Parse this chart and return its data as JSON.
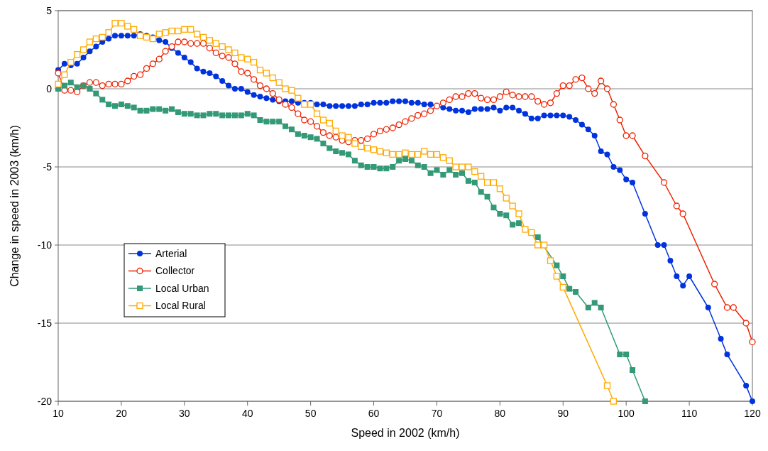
{
  "chart_data": {
    "type": "line",
    "xlabel": "Speed in 2002 (km/h)",
    "ylabel": "Change in speed in 2003 (km/h)",
    "xlim": [
      10,
      120
    ],
    "xticks": [
      10,
      20,
      30,
      40,
      50,
      60,
      70,
      80,
      90,
      100,
      110,
      120
    ],
    "ylim": [
      -20,
      5
    ],
    "yticks": [
      -20,
      -15,
      -10,
      -5,
      0,
      5
    ],
    "grid": "y",
    "legend": "bottom left",
    "line_style": "solid",
    "series": [
      {
        "name": "Arterial",
        "color": "#0033dd",
        "marker": "circle",
        "x": [
          10,
          11,
          12,
          13,
          14,
          15,
          16,
          17,
          18,
          19,
          20,
          21,
          22,
          23,
          24,
          25,
          26,
          27,
          28,
          29,
          30,
          31,
          32,
          33,
          34,
          35,
          36,
          37,
          38,
          39,
          40,
          41,
          42,
          43,
          44,
          45,
          46,
          47,
          48,
          49,
          50,
          51,
          52,
          53,
          54,
          55,
          56,
          57,
          58,
          59,
          60,
          61,
          62,
          63,
          64,
          65,
          66,
          67,
          68,
          69,
          70,
          71,
          72,
          73,
          74,
          75,
          76,
          77,
          78,
          79,
          80,
          81,
          82,
          83,
          84,
          85,
          86,
          87,
          88,
          89,
          90,
          91,
          92,
          93,
          94,
          95,
          96,
          97,
          98,
          99,
          100,
          101,
          103,
          105,
          106,
          107,
          108,
          109,
          110,
          113,
          115,
          116,
          119,
          120
        ],
        "values": [
          1.2,
          1.6,
          1.5,
          1.6,
          2.0,
          2.4,
          2.7,
          3.0,
          3.2,
          3.4,
          3.4,
          3.4,
          3.4,
          3.5,
          3.4,
          3.3,
          3.1,
          3.0,
          2.6,
          2.3,
          2.0,
          1.7,
          1.3,
          1.1,
          1.0,
          0.8,
          0.5,
          0.2,
          0.0,
          0.0,
          -0.2,
          -0.4,
          -0.5,
          -0.6,
          -0.7,
          -0.8,
          -0.8,
          -0.8,
          -0.9,
          -0.9,
          -0.9,
          -1.0,
          -1.0,
          -1.1,
          -1.1,
          -1.1,
          -1.1,
          -1.1,
          -1.0,
          -1.0,
          -0.9,
          -0.9,
          -0.9,
          -0.8,
          -0.8,
          -0.8,
          -0.9,
          -0.9,
          -1.0,
          -1.0,
          -1.1,
          -1.2,
          -1.3,
          -1.4,
          -1.4,
          -1.5,
          -1.3,
          -1.3,
          -1.3,
          -1.2,
          -1.4,
          -1.2,
          -1.2,
          -1.4,
          -1.6,
          -1.9,
          -1.9,
          -1.7,
          -1.7,
          -1.7,
          -1.7,
          -1.8,
          -2.0,
          -2.3,
          -2.6,
          -3.0,
          -4.0,
          -4.2,
          -5.0,
          -5.2,
          -5.8,
          -6.0,
          -8.0,
          -10.0,
          -10.0,
          -11.0,
          -12.0,
          -12.6,
          -12.0,
          -14.0,
          -16.0,
          -17.0,
          -19.0,
          -20.0
        ]
      },
      {
        "name": "Collector",
        "color": "#ee2200",
        "marker": "circle",
        "x": [
          10,
          11,
          12,
          13,
          14,
          15,
          16,
          17,
          18,
          19,
          20,
          21,
          22,
          23,
          24,
          25,
          26,
          27,
          28,
          29,
          30,
          31,
          32,
          33,
          34,
          35,
          36,
          37,
          38,
          39,
          40,
          41,
          42,
          43,
          44,
          45,
          46,
          47,
          48,
          49,
          50,
          51,
          52,
          53,
          54,
          55,
          56,
          57,
          58,
          59,
          60,
          61,
          62,
          63,
          64,
          65,
          66,
          67,
          68,
          69,
          70,
          71,
          72,
          73,
          74,
          75,
          76,
          77,
          78,
          79,
          80,
          81,
          82,
          83,
          84,
          85,
          86,
          87,
          88,
          89,
          90,
          91,
          92,
          93,
          94,
          95,
          96,
          97,
          98,
          99,
          100,
          101,
          103,
          106,
          108,
          109,
          114,
          116,
          117,
          119,
          120
        ],
        "values": [
          1.0,
          -0.1,
          -0.1,
          -0.2,
          0.2,
          0.4,
          0.4,
          0.2,
          0.3,
          0.3,
          0.3,
          0.5,
          0.8,
          0.9,
          1.3,
          1.6,
          1.9,
          2.4,
          2.7,
          3.0,
          3.0,
          2.9,
          2.9,
          2.9,
          2.6,
          2.3,
          2.1,
          2.0,
          1.6,
          1.1,
          1.0,
          0.6,
          0.2,
          0.0,
          -0.3,
          -0.7,
          -1.0,
          -1.2,
          -1.6,
          -2.0,
          -2.1,
          -2.4,
          -2.8,
          -3.0,
          -3.1,
          -3.3,
          -3.4,
          -3.3,
          -3.3,
          -3.2,
          -2.9,
          -2.7,
          -2.6,
          -2.5,
          -2.3,
          -2.1,
          -1.9,
          -1.7,
          -1.6,
          -1.4,
          -1.1,
          -0.9,
          -0.7,
          -0.5,
          -0.5,
          -0.3,
          -0.3,
          -0.6,
          -0.7,
          -0.7,
          -0.5,
          -0.2,
          -0.4,
          -0.5,
          -0.5,
          -0.5,
          -0.8,
          -1.0,
          -0.9,
          -0.3,
          0.2,
          0.2,
          0.6,
          0.7,
          0.0,
          -0.3,
          0.5,
          0.0,
          -1.0,
          -2.0,
          -3.0,
          -3.0,
          -4.3,
          -6.0,
          -7.5,
          -8.0,
          -12.5,
          -14.0,
          -14.0,
          -15.0,
          -16.2
        ]
      },
      {
        "name": "Local Urban",
        "color": "#339977",
        "marker": "square",
        "x": [
          10,
          11,
          12,
          13,
          14,
          15,
          16,
          17,
          18,
          19,
          20,
          21,
          22,
          23,
          24,
          25,
          26,
          27,
          28,
          29,
          30,
          31,
          32,
          33,
          34,
          35,
          36,
          37,
          38,
          39,
          40,
          41,
          42,
          43,
          44,
          45,
          46,
          47,
          48,
          49,
          50,
          51,
          52,
          53,
          54,
          55,
          56,
          57,
          58,
          59,
          60,
          61,
          62,
          63,
          64,
          65,
          66,
          67,
          68,
          69,
          70,
          71,
          72,
          73,
          74,
          75,
          76,
          77,
          78,
          79,
          80,
          81,
          82,
          83,
          84,
          85,
          86,
          89,
          90,
          91,
          92,
          94,
          95,
          96,
          99,
          100,
          101,
          103
        ],
        "values": [
          0.0,
          0.2,
          0.4,
          0.1,
          0.2,
          0.0,
          -0.3,
          -0.7,
          -1.0,
          -1.1,
          -1.0,
          -1.1,
          -1.2,
          -1.4,
          -1.4,
          -1.3,
          -1.3,
          -1.4,
          -1.3,
          -1.5,
          -1.6,
          -1.6,
          -1.7,
          -1.7,
          -1.6,
          -1.6,
          -1.7,
          -1.7,
          -1.7,
          -1.7,
          -1.6,
          -1.7,
          -2.0,
          -2.1,
          -2.1,
          -2.1,
          -2.4,
          -2.6,
          -2.9,
          -3.0,
          -3.1,
          -3.2,
          -3.5,
          -3.8,
          -4.0,
          -4.1,
          -4.2,
          -4.6,
          -4.9,
          -5.0,
          -5.0,
          -5.1,
          -5.1,
          -5.0,
          -4.6,
          -4.5,
          -4.6,
          -4.9,
          -5.0,
          -5.4,
          -5.2,
          -5.5,
          -5.2,
          -5.5,
          -5.4,
          -5.9,
          -6.0,
          -6.6,
          -6.9,
          -7.6,
          -8.0,
          -8.1,
          -8.7,
          -8.6,
          -9.0,
          -9.2,
          -9.5,
          -11.3,
          -12.0,
          -12.8,
          -13.0,
          -14.0,
          -13.7,
          -14.0,
          -17.0,
          -17.0,
          -18.0,
          -20.0
        ]
      },
      {
        "name": "Local Rural",
        "color": "#ffaa00",
        "marker": "square",
        "x": [
          10,
          11,
          12,
          13,
          14,
          15,
          16,
          17,
          18,
          19,
          20,
          21,
          22,
          23,
          24,
          25,
          26,
          27,
          28,
          29,
          30,
          31,
          32,
          33,
          34,
          35,
          36,
          37,
          38,
          39,
          40,
          41,
          42,
          43,
          44,
          45,
          46,
          47,
          48,
          49,
          50,
          51,
          52,
          53,
          54,
          55,
          56,
          57,
          58,
          59,
          60,
          61,
          62,
          63,
          64,
          65,
          66,
          67,
          68,
          69,
          70,
          71,
          72,
          73,
          74,
          75,
          76,
          77,
          78,
          79,
          80,
          81,
          82,
          83,
          84,
          85,
          86,
          87,
          88,
          89,
          90,
          97,
          98
        ],
        "values": [
          0.3,
          0.9,
          1.7,
          2.2,
          2.5,
          3.0,
          3.2,
          3.3,
          3.6,
          4.2,
          4.2,
          4.0,
          3.8,
          3.4,
          3.3,
          3.2,
          3.5,
          3.6,
          3.7,
          3.7,
          3.8,
          3.8,
          3.5,
          3.3,
          3.1,
          2.9,
          2.7,
          2.5,
          2.3,
          2.0,
          1.9,
          1.7,
          1.2,
          1.0,
          0.7,
          0.4,
          0.0,
          -0.1,
          -0.6,
          -1.0,
          -1.0,
          -1.6,
          -2.0,
          -2.2,
          -2.7,
          -3.0,
          -3.1,
          -3.5,
          -3.7,
          -3.8,
          -3.9,
          -4.0,
          -4.1,
          -4.2,
          -4.2,
          -4.1,
          -4.2,
          -4.2,
          -4.0,
          -4.2,
          -4.2,
          -4.4,
          -4.6,
          -5.0,
          -5.0,
          -5.0,
          -5.3,
          -5.6,
          -6.0,
          -6.0,
          -6.4,
          -7.0,
          -7.5,
          -8.0,
          -9.0,
          -9.2,
          -10.0,
          -10.0,
          -11.0,
          -12.0,
          -12.7,
          -19.0,
          -20.0
        ]
      }
    ]
  }
}
